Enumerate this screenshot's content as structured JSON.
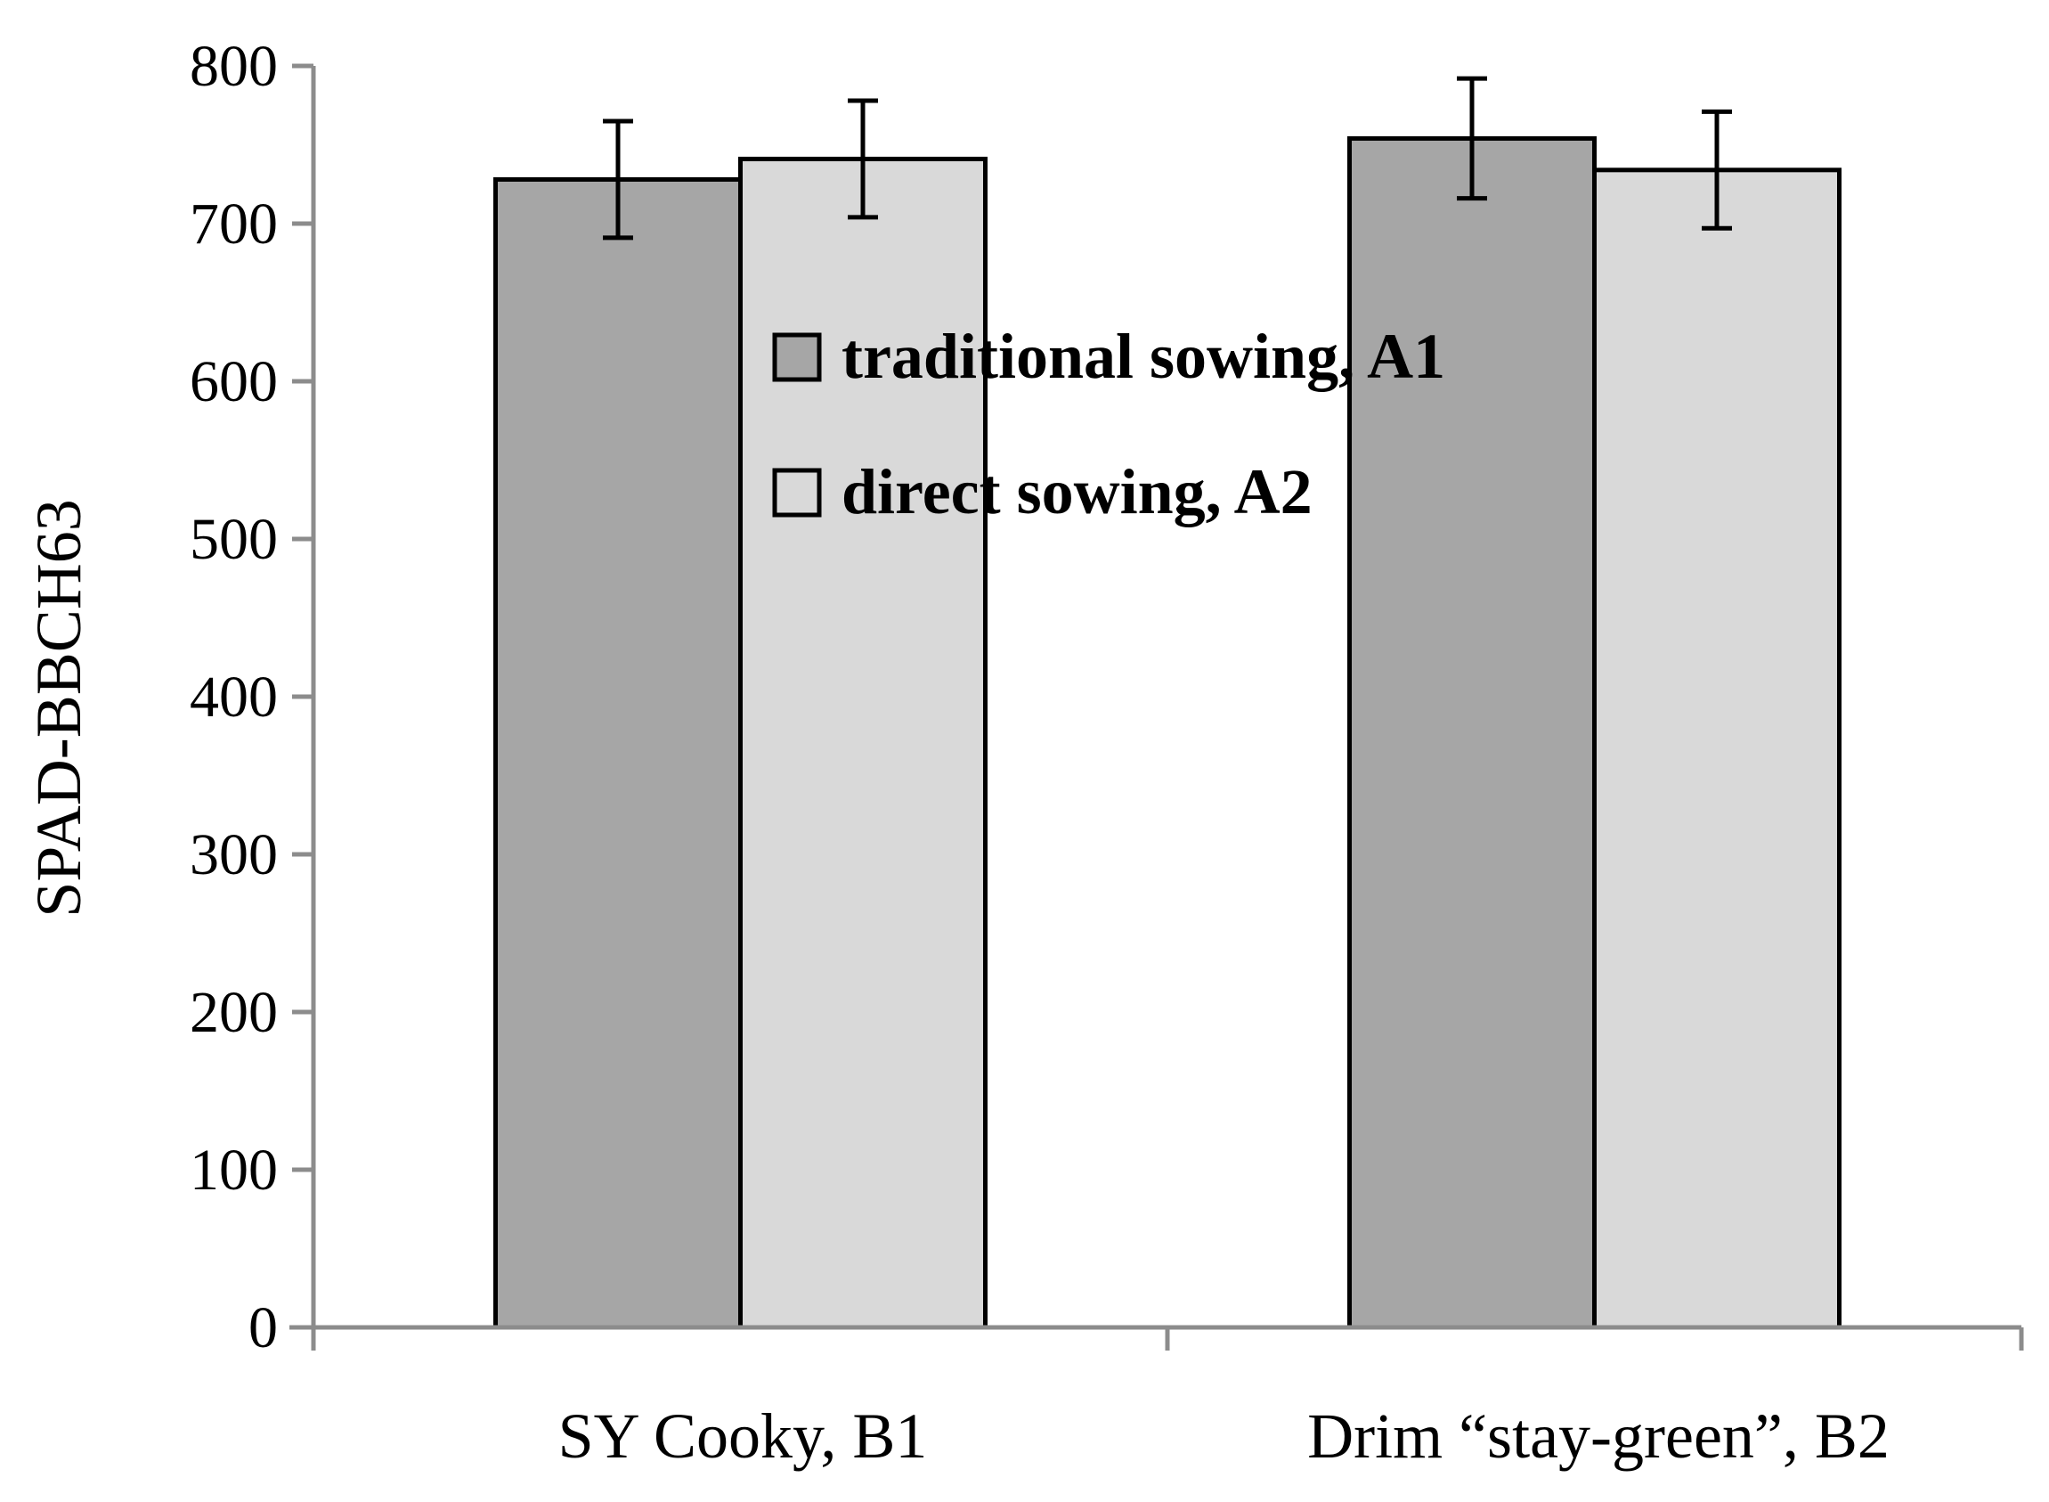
{
  "chart_data": {
    "type": "bar",
    "title": "",
    "xlabel": "",
    "ylabel": "SPAD-BBCH63",
    "ylim": [
      0,
      800
    ],
    "yticks": [
      0,
      100,
      200,
      300,
      400,
      500,
      600,
      700,
      800
    ],
    "grid": false,
    "legend_position": "center",
    "categories": [
      "SY Cooky, B1",
      "Drim “stay-green”, B2"
    ],
    "series": [
      {
        "name": "traditional sowing, A1",
        "color": "#a6a6a6",
        "values": [
          728,
          754
        ],
        "errors": [
          37,
          38
        ]
      },
      {
        "name": "direct sowing, A2",
        "color": "#d9d9d9",
        "values": [
          741,
          734
        ],
        "errors": [
          37,
          37
        ]
      }
    ]
  }
}
